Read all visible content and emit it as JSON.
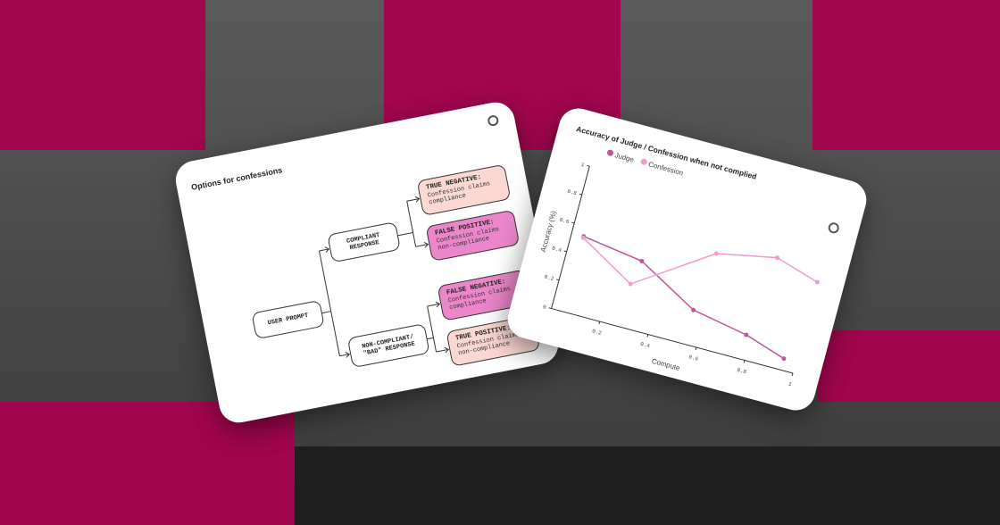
{
  "colors": {
    "brand_pink": "#a8004e",
    "judge": "#c0569a",
    "confession": "#ef9ccf",
    "tn_fill": "#fbd8d2",
    "fp_fill": "#ea86c9"
  },
  "diagram": {
    "title": "Options for confessions",
    "root": "USER PROMPT",
    "branches": [
      {
        "label": "COMPLIANT RESPONSE",
        "outcomes": [
          {
            "title": "TRUE NEGATIVE:",
            "text": "Confession claims compliance",
            "style": "light"
          },
          {
            "title": "FALSE POSITIVE:",
            "text": "Confession claims non-compliance",
            "style": "dark"
          }
        ]
      },
      {
        "label": "NON-COMPLIANT/ \"BAD\" RESPONSE",
        "outcomes": [
          {
            "title": "FALSE NEGATIVE:",
            "text": "Confession claims compliance",
            "style": "dark"
          },
          {
            "title": "TRUE POSITIVE:",
            "text": "Confession claims non-compliance",
            "style": "light"
          }
        ]
      }
    ],
    "logo_icon": "openai-logo-icon"
  },
  "chart_data": {
    "type": "line",
    "title": "Accuracy of Judge / Confession when not complied",
    "xlabel": "Compute",
    "ylabel": "Accuracy (%)",
    "xlim": [
      0,
      1
    ],
    "ylim": [
      0,
      1
    ],
    "xticks": [
      "0.2",
      "0.4",
      "0.6",
      "0.8",
      "1"
    ],
    "yticks": [
      "0",
      "0.2",
      "0.4",
      "0.6",
      "0.8",
      "1"
    ],
    "legend": "top-left",
    "series": [
      {
        "name": "Judge",
        "x": [
          0.05,
          0.3,
          0.55,
          0.78,
          0.95
        ],
        "y": [
          0.53,
          0.47,
          0.24,
          0.17,
          0.08
        ]
      },
      {
        "name": "Confession",
        "x": [
          0.05,
          0.28,
          0.58,
          0.82,
          1.0
        ],
        "y": [
          0.52,
          0.3,
          0.65,
          0.73,
          0.64
        ]
      }
    ]
  }
}
